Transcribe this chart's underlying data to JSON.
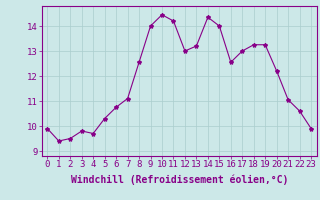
{
  "x": [
    0,
    1,
    2,
    3,
    4,
    5,
    6,
    7,
    8,
    9,
    10,
    11,
    12,
    13,
    14,
    15,
    16,
    17,
    18,
    19,
    20,
    21,
    22,
    23
  ],
  "y": [
    9.9,
    9.4,
    9.5,
    9.8,
    9.7,
    10.3,
    10.75,
    11.1,
    12.55,
    14.0,
    14.45,
    14.2,
    13.0,
    13.2,
    14.35,
    14.0,
    12.55,
    13.0,
    13.25,
    13.25,
    12.2,
    11.05,
    10.6,
    9.9
  ],
  "line_color": "#880088",
  "marker": "*",
  "marker_size": 3,
  "xlabel": "Windchill (Refroidissement éolien,°C)",
  "ylabel_ticks": [
    9,
    10,
    11,
    12,
    13,
    14
  ],
  "ylim": [
    8.8,
    14.8
  ],
  "xlim": [
    -0.5,
    23.5
  ],
  "bg_color": "#cce8e8",
  "grid_color": "#aacece",
  "line_purple": "#880088",
  "font_size_xlabel": 7,
  "font_size_tick": 6.5
}
